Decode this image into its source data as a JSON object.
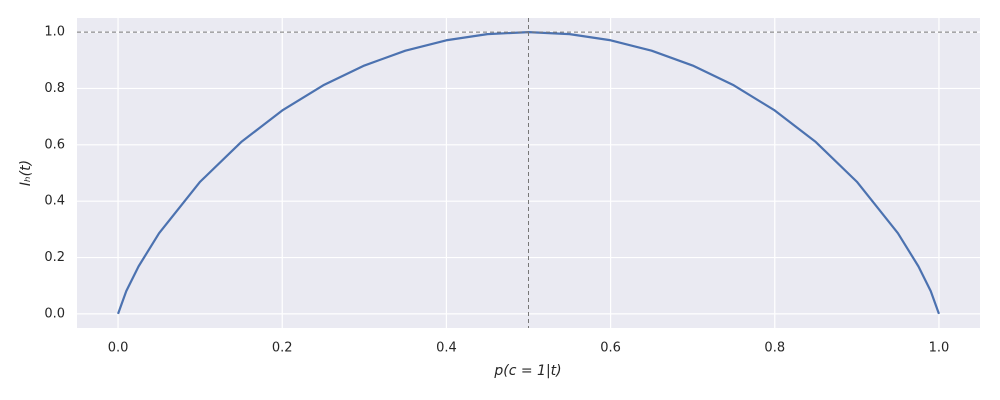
{
  "chart_data": {
    "type": "line",
    "xlabel": "p(c = 1|t)",
    "ylabel": "Iₕ(t)",
    "x": [
      0,
      0.01,
      0.025,
      0.05,
      0.1,
      0.15,
      0.2,
      0.25,
      0.3,
      0.35,
      0.4,
      0.45,
      0.5,
      0.55,
      0.6,
      0.65,
      0.7,
      0.75,
      0.8,
      0.85,
      0.9,
      0.95,
      0.975,
      0.99,
      1
    ],
    "series": [
      {
        "color": "#4c72b0",
        "values": [
          0,
          0.0808,
          0.1687,
          0.2864,
          0.469,
          0.6098,
          0.7219,
          0.8113,
          0.8813,
          0.9341,
          0.971,
          0.9928,
          1,
          0.9928,
          0.971,
          0.9341,
          0.8813,
          0.8113,
          0.7219,
          0.6098,
          0.469,
          0.2864,
          0.1687,
          0.0808,
          0
        ]
      }
    ],
    "xlim": [
      -0.05,
      1.05
    ],
    "ylim": [
      -0.05,
      1.05
    ],
    "xticks": [
      {
        "value": 0,
        "label": "0.0"
      },
      0.2,
      0.4,
      0.6,
      0.8,
      {
        "value": 1,
        "label": "1.0"
      }
    ],
    "yticks": [
      {
        "value": 0,
        "label": "0.0"
      },
      0.2,
      0.4,
      0.6,
      0.8,
      {
        "value": 1,
        "label": "1.0"
      }
    ],
    "hline": 1,
    "vline": 0.5,
    "grid": true
  }
}
